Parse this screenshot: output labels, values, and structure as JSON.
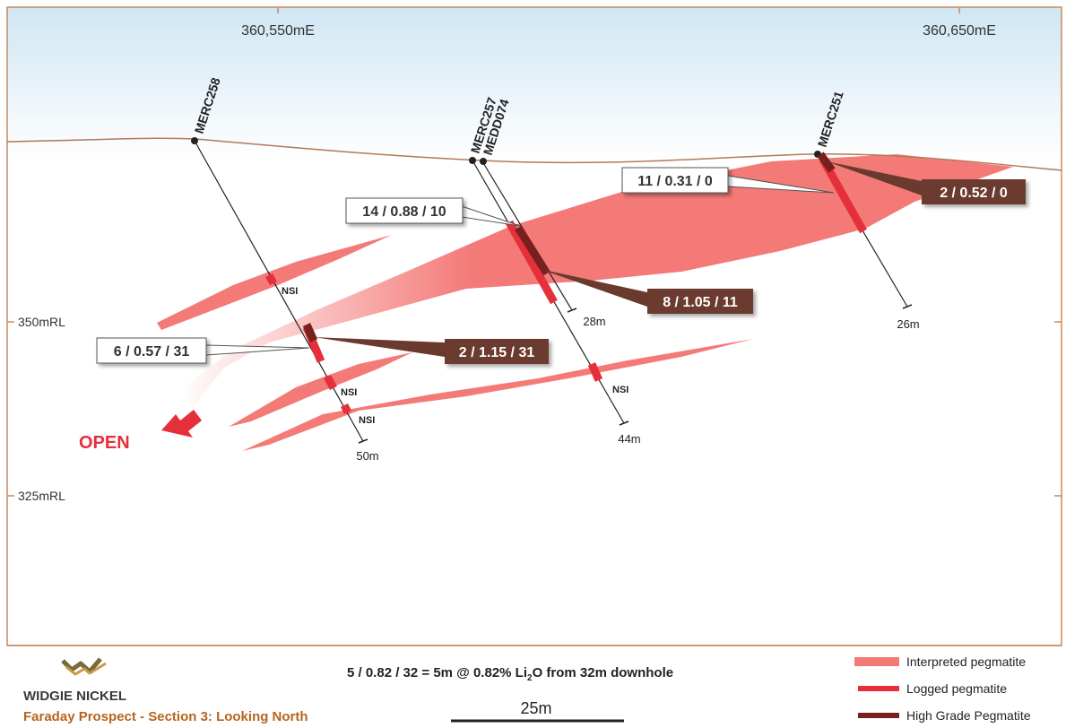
{
  "section": {
    "eastings": [
      "360,550mE",
      "360,650mE"
    ],
    "levels": [
      "350mRL",
      "325mRL"
    ],
    "open_label": "OPEN",
    "nsi_label": "NSI"
  },
  "drillholes": [
    {
      "id": "MERC258",
      "depth": "50m"
    },
    {
      "id": "MERC257",
      "depth": "44m"
    },
    {
      "id": "MEDD074",
      "depth": "28m"
    },
    {
      "id": "MERC251",
      "depth": "26m"
    }
  ],
  "intercepts": {
    "logged": [
      "6 / 0.57 / 31",
      "14 / 0.88 / 10",
      "11 / 0.31 / 0"
    ],
    "high_grade": [
      "2 / 1.15 / 31",
      "8 / 1.05 / 11",
      "2 / 0.52 / 0"
    ]
  },
  "footer": {
    "company": "WIDGIE NICKEL",
    "caption": "Faraday Prospect - Section 3: Looking North",
    "explanation_prefix": "5 / 0.82 / 32 = 5m @ 0.82% Li",
    "explanation_sub": "2",
    "explanation_suffix": "O from 32m downhole",
    "scale_label": "25m"
  },
  "legend": [
    {
      "label": "Interpreted pegmatite",
      "color": "#f47a78"
    },
    {
      "label": "Logged pegmatite",
      "color": "#e5303c"
    },
    {
      "label": "High Grade Pegmatite",
      "color": "#7a1f1f"
    }
  ],
  "colors": {
    "frame": "#c98a5a",
    "surface": "#b27a55",
    "interpreted": "#f47a78",
    "logged": "#e5303c",
    "high_grade": "#7a1f1f",
    "callout_dark": "#6b3a2e",
    "caption": "#b5651d",
    "open_arrow": "#e5303c"
  }
}
